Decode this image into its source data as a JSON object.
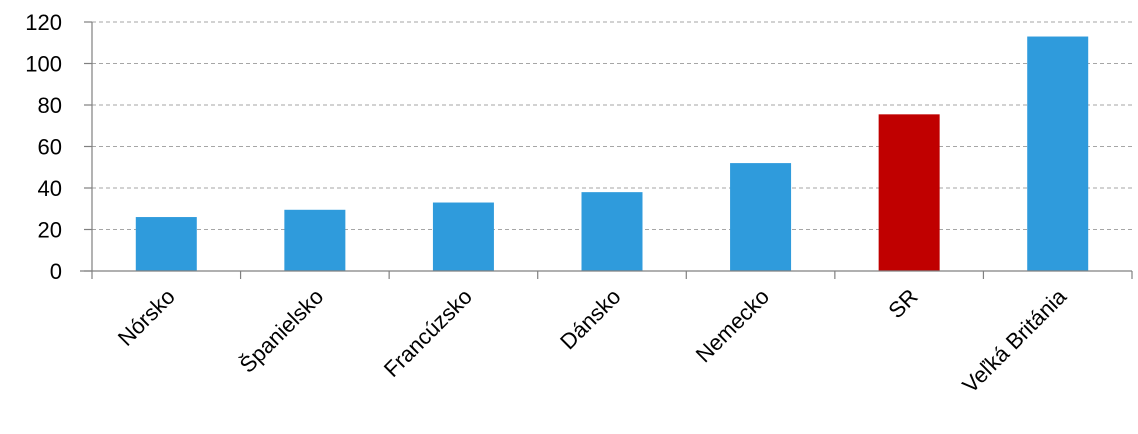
{
  "chart_data": {
    "type": "bar",
    "categories": [
      "Nórsko",
      "Španielsko",
      "Francúzsko",
      "Dánsko",
      "Nemecko",
      "SR",
      "Veľká Británia"
    ],
    "values": [
      26,
      29.5,
      33,
      38,
      52,
      75.5,
      113
    ],
    "bar_colors": [
      "#2f9bdc",
      "#2f9bdc",
      "#2f9bdc",
      "#2f9bdc",
      "#2f9bdc",
      "#c00000",
      "#2f9bdc"
    ],
    "yticks": [
      0,
      20,
      40,
      60,
      80,
      100,
      120
    ],
    "ylim": [
      0,
      120
    ],
    "grid": true
  }
}
